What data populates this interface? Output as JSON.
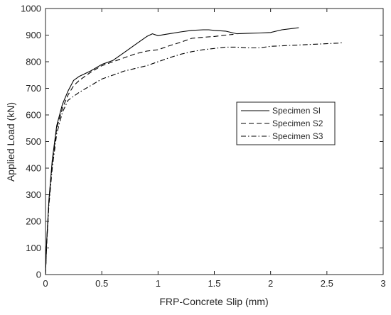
{
  "chart_data": {
    "type": "line",
    "title": "",
    "xlabel": "FRP-Concrete Slip (mm)",
    "ylabel": "Applied Load (kN)",
    "xlim": [
      0,
      3
    ],
    "ylim": [
      0,
      1000
    ],
    "xticks": [
      0,
      0.5,
      1,
      1.5,
      2,
      2.5,
      3
    ],
    "xtick_labels": [
      "0",
      "0.5",
      "1",
      "1.5",
      "2",
      "2.5",
      "3"
    ],
    "yticks": [
      0,
      100,
      200,
      300,
      400,
      500,
      600,
      700,
      800,
      900,
      1000
    ],
    "ytick_labels": [
      "0",
      "100",
      "200",
      "300",
      "400",
      "500",
      "600",
      "700",
      "800",
      "900",
      "1000"
    ],
    "grid": false,
    "legend_position": "center-right",
    "series": [
      {
        "name": "Specimen SI",
        "line_style": "solid",
        "color": "#000000",
        "x": [
          0,
          0.01,
          0.03,
          0.06,
          0.1,
          0.15,
          0.2,
          0.25,
          0.3,
          0.4,
          0.5,
          0.6,
          0.7,
          0.8,
          0.9,
          0.95,
          1.0,
          1.05,
          1.1,
          1.2,
          1.3,
          1.4,
          1.45,
          1.5,
          1.6,
          1.7,
          1.8,
          1.9,
          2.0,
          2.1,
          2.2,
          2.25
        ],
        "y": [
          0,
          120,
          280,
          430,
          560,
          640,
          690,
          730,
          745,
          765,
          790,
          805,
          835,
          865,
          895,
          905,
          898,
          902,
          905,
          912,
          918,
          920,
          920,
          918,
          915,
          905,
          907,
          908,
          910,
          920,
          925,
          928
        ]
      },
      {
        "name": "Specimen S2",
        "line_style": "dashed",
        "color": "#000000",
        "x": [
          0,
          0.01,
          0.03,
          0.06,
          0.1,
          0.15,
          0.2,
          0.25,
          0.3,
          0.4,
          0.5,
          0.6,
          0.7,
          0.8,
          0.9,
          1.0,
          1.1,
          1.2,
          1.3,
          1.4,
          1.5,
          1.6,
          1.67
        ],
        "y": [
          0,
          120,
          275,
          420,
          550,
          625,
          675,
          710,
          730,
          760,
          785,
          800,
          815,
          830,
          840,
          845,
          860,
          873,
          888,
          892,
          895,
          900,
          903
        ]
      },
      {
        "name": "Specimen S3",
        "line_style": "dashdot",
        "color": "#000000",
        "x": [
          0,
          0.01,
          0.03,
          0.06,
          0.1,
          0.15,
          0.2,
          0.25,
          0.3,
          0.4,
          0.5,
          0.6,
          0.7,
          0.8,
          0.9,
          1.0,
          1.1,
          1.2,
          1.3,
          1.4,
          1.5,
          1.6,
          1.7,
          1.8,
          1.9,
          2.0,
          2.2,
          2.4,
          2.6,
          2.65
        ],
        "y": [
          0,
          110,
          260,
          400,
          530,
          610,
          655,
          670,
          685,
          710,
          735,
          750,
          765,
          775,
          785,
          800,
          815,
          828,
          838,
          845,
          850,
          855,
          855,
          852,
          852,
          858,
          862,
          866,
          870,
          872
        ]
      }
    ]
  }
}
